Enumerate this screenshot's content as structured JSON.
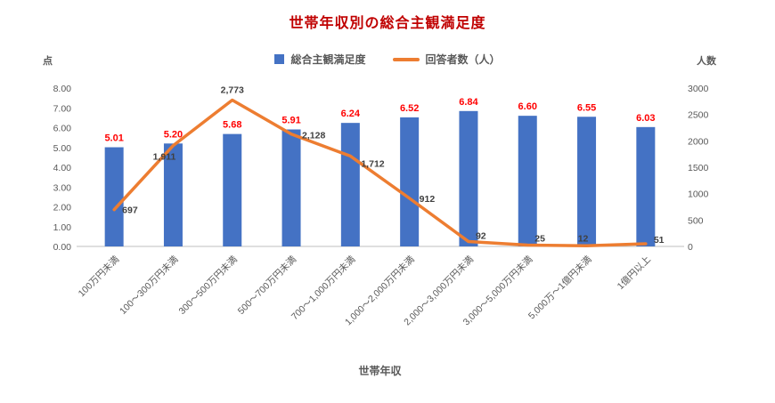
{
  "chart": {
    "title": "世帯年収別の総合主観満足度",
    "legend": {
      "bars": "総合主観満足度",
      "line": "回答者数（人）"
    },
    "left_axis_unit": "点",
    "right_axis_unit": "人数",
    "xlabel": "世帯年収"
  },
  "chart_data": {
    "type": "bar",
    "subtype": "combo-bar-line",
    "title": "世帯年収別の総合主観満足度",
    "xlabel": "世帯年収",
    "grid": false,
    "legend_position": "top",
    "categories": [
      "100万円未満",
      "100～300万円未満",
      "300～500万円未満",
      "500～700万円未満",
      "700～1,000万円未満",
      "1,000～2,000万円未満",
      "2,000～3,000万円未満",
      "3,000～5,000万円未満",
      "5,000万～1億円未満",
      "1億円以上"
    ],
    "left_axis": {
      "title": "点",
      "min": 0,
      "max": 8,
      "step": 1
    },
    "right_axis": {
      "title": "人数",
      "min": 0,
      "max": 3000,
      "step": 500
    },
    "series": [
      {
        "name": "総合主観満足度",
        "kind": "bar",
        "axis": "left",
        "color": "#4472C4",
        "label_color": "#FF0000",
        "values": [
          5.01,
          5.2,
          5.68,
          5.91,
          6.24,
          6.52,
          6.84,
          6.6,
          6.55,
          6.03
        ],
        "labels": [
          "5.01",
          "5.20",
          "5.68",
          "5.91",
          "6.24",
          "6.52",
          "6.84",
          "6.60",
          "6.55",
          "6.03"
        ]
      },
      {
        "name": "回答者数（人）",
        "kind": "line",
        "axis": "right",
        "color": "#ED7D31",
        "label_color": "#404040",
        "values": [
          697,
          1911,
          2773,
          2128,
          1712,
          912,
          92,
          25,
          12,
          51
        ],
        "labels": [
          "697",
          "1,911",
          "2,773",
          "2,128",
          "1,712",
          "912",
          "92",
          "25",
          "12",
          "51"
        ],
        "label_offsets": [
          {
            "dx": 9,
            "dy": 4,
            "anchor": "start"
          },
          {
            "dx": -10,
            "dy": 16,
            "anchor": "middle"
          },
          {
            "dx": 0,
            "dy": -8,
            "anchor": "middle"
          },
          {
            "dx": 12,
            "dy": 5,
            "anchor": "start"
          },
          {
            "dx": 12,
            "dy": 12,
            "anchor": "start"
          },
          {
            "dx": 11,
            "dy": 4,
            "anchor": "start"
          },
          {
            "dx": 8,
            "dy": -3,
            "anchor": "start"
          },
          {
            "dx": 8,
            "dy": -4,
            "anchor": "start"
          },
          {
            "dx": -4,
            "dy": -5,
            "anchor": "middle"
          },
          {
            "dx": 9,
            "dy": -1,
            "anchor": "start"
          }
        ]
      }
    ]
  }
}
